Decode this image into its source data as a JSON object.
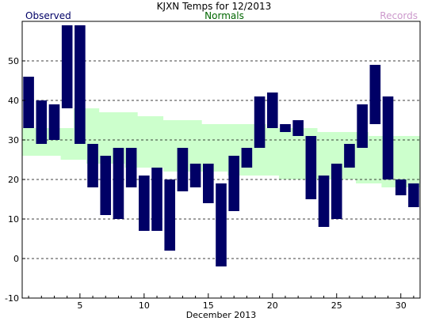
{
  "title": "KJXN Temps for 12/2013",
  "legend": {
    "observed": "Observed",
    "normals": "Normals",
    "records": "Records"
  },
  "colors": {
    "observed": "#000066",
    "normals_fill": "#ccffcc",
    "normals_text": "#006600",
    "records_text": "#cc99cc"
  },
  "chart_data": {
    "type": "bar",
    "title": "KJXN Temps for 12/2013",
    "xlabel": "December 2013",
    "ylabel": "",
    "xlim": [
      0.5,
      31.5
    ],
    "ylim": [
      -10,
      60
    ],
    "x_ticks": [
      5,
      10,
      15,
      20,
      25,
      30
    ],
    "y_ticks": [
      -10,
      0,
      10,
      20,
      30,
      40,
      50
    ],
    "grid": "horizontal dashed",
    "days": [
      1,
      2,
      3,
      4,
      5,
      6,
      7,
      8,
      9,
      10,
      11,
      12,
      13,
      14,
      15,
      16,
      17,
      18,
      19,
      20,
      21,
      22,
      23,
      24,
      25,
      26,
      27,
      28,
      29,
      30,
      31
    ],
    "series": [
      {
        "name": "Observed",
        "kind": "range",
        "high": [
          46,
          40,
          39,
          59,
          59,
          29,
          26,
          28,
          28,
          21,
          23,
          20,
          28,
          24,
          24,
          19,
          26,
          28,
          41,
          42,
          34,
          35,
          31,
          21,
          24,
          29,
          39,
          49,
          41,
          20,
          19
        ],
        "low": [
          33,
          29,
          30,
          38,
          29,
          18,
          11,
          10,
          18,
          7,
          7,
          2,
          17,
          18,
          14,
          -2,
          12,
          23,
          28,
          33,
          32,
          31,
          15,
          8,
          10,
          23,
          28,
          34,
          20,
          16,
          13
        ]
      },
      {
        "name": "Normals",
        "kind": "band",
        "high": [
          33,
          33,
          33,
          33,
          38,
          38,
          37,
          37,
          37,
          36,
          36,
          35,
          35,
          35,
          34,
          34,
          34,
          34,
          34,
          33,
          33,
          33,
          33,
          32,
          32,
          32,
          32,
          31,
          31,
          31,
          31
        ],
        "low": [
          26,
          26,
          26,
          25,
          25,
          24,
          24,
          24,
          23,
          23,
          23,
          22,
          22,
          22,
          22,
          22,
          21,
          21,
          21,
          21,
          20,
          20,
          20,
          20,
          20,
          20,
          19,
          19,
          18,
          18,
          18
        ]
      }
    ]
  }
}
